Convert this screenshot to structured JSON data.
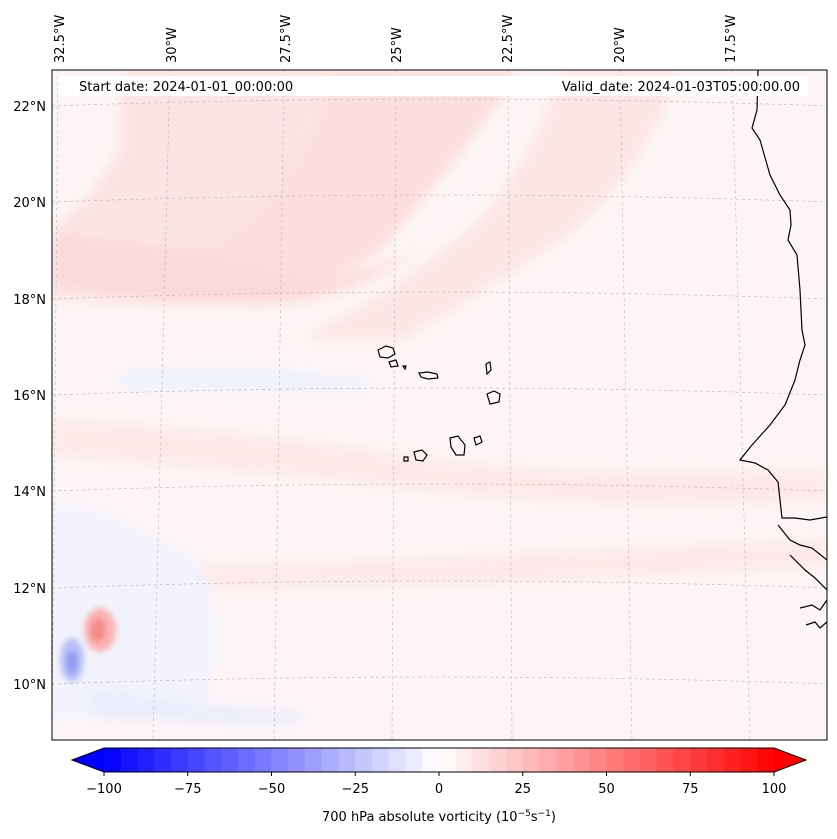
{
  "header": {
    "start_label": "Start date: 2024-01-01_00:00:00",
    "valid_label": "Valid_date: 2024-01-03T05:00:00.00"
  },
  "axes": {
    "lon_labels": [
      "32.5°W",
      "30°W",
      "27.5°W",
      "25°W",
      "22.5°W",
      "20°W",
      "17.5°W"
    ],
    "lat_labels": [
      "22°N",
      "20°N",
      "18°N",
      "16°N",
      "14°N",
      "12°N",
      "10°N"
    ]
  },
  "colorbar": {
    "ticks": [
      "−100",
      "−75",
      "−50",
      "−25",
      "0",
      "25",
      "50",
      "75",
      "100"
    ],
    "tick_values": [
      -100,
      -75,
      -50,
      -25,
      0,
      25,
      50,
      75,
      100
    ],
    "range": [
      -100,
      100
    ],
    "levels": 40,
    "cmap_low": "#0000ff",
    "cmap_mid": "#ffffff",
    "cmap_high": "#ff0000",
    "label_prefix": "700 hPa absolute vorticity (10",
    "label_exp1": "−5",
    "label_mid": "s",
    "label_exp2": "−1",
    "label_suffix": ")"
  },
  "map": {
    "background_color": "#fdf5f5",
    "coast_color": "#000000"
  }
}
